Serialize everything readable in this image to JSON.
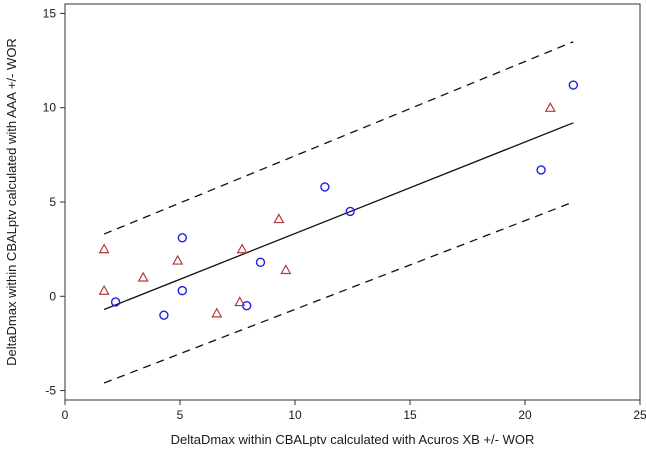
{
  "chart_data": {
    "type": "scatter",
    "title": "",
    "xlabel": "DeltaDmax within CBALptv calculated with Acuros XB +/- WOR",
    "ylabel": "DeltaDmax within CBALptv calculated with AAA +/- WOR",
    "xlim": [
      0,
      25
    ],
    "ylim": [
      -5.5,
      15.5
    ],
    "xticks": [
      0,
      5,
      10,
      15,
      20,
      25
    ],
    "yticks": [
      -5,
      0,
      5,
      10,
      15
    ],
    "grid": false,
    "legend": "none",
    "series": [
      {
        "marker": "circle",
        "color": "#1f1fe6",
        "points": [
          [
            2.2,
            -0.3
          ],
          [
            4.3,
            -1.0
          ],
          [
            5.1,
            3.1
          ],
          [
            5.1,
            0.3
          ],
          [
            7.9,
            -0.5
          ],
          [
            8.5,
            1.8
          ],
          [
            11.3,
            5.8
          ],
          [
            12.4,
            4.5
          ],
          [
            20.7,
            6.7
          ],
          [
            22.1,
            11.2
          ]
        ]
      },
      {
        "marker": "triangle",
        "color": "#b03a3a",
        "points": [
          [
            1.7,
            2.5
          ],
          [
            1.7,
            0.3
          ],
          [
            3.4,
            1.0
          ],
          [
            4.9,
            1.9
          ],
          [
            6.6,
            -0.9
          ],
          [
            7.6,
            -0.3
          ],
          [
            7.7,
            2.5
          ],
          [
            9.3,
            4.1
          ],
          [
            9.6,
            1.4
          ],
          [
            21.1,
            10.0
          ]
        ]
      }
    ],
    "lines": [
      {
        "style": "solid",
        "x": [
          1.7,
          22.1
        ],
        "y": [
          -0.7,
          9.2
        ]
      },
      {
        "style": "dashed",
        "x": [
          1.7,
          22.1
        ],
        "y": [
          3.3,
          13.5
        ]
      },
      {
        "style": "dashed",
        "x": [
          1.7,
          22.1
        ],
        "y": [
          -4.6,
          5.0
        ]
      }
    ]
  }
}
